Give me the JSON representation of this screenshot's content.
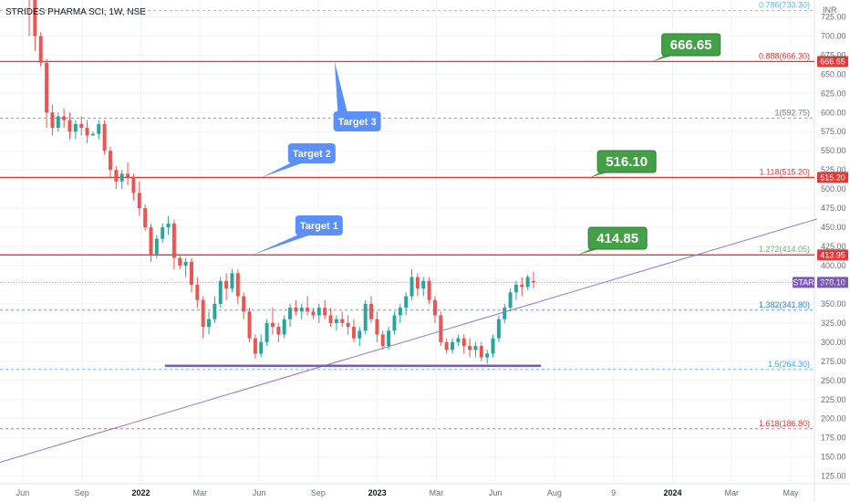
{
  "header": {
    "title": "STRIDES PHARMA SCI, 1W, NSE",
    "currency": "INR"
  },
  "colors": {
    "up": "#26a69a",
    "down": "#ef5350",
    "target_line": "#e53935",
    "trend_line": "#9575cd",
    "support_line": "#7e57c2",
    "callout_blue": "#5b8ff9",
    "callout_green": "#43a047"
  },
  "chart_data": {
    "type": "candlestick",
    "title": "STRIDES PHARMA SCI, 1W, NSE",
    "ylabel": "INR",
    "ylim": [
      115,
      747
    ],
    "y_ticks": [
      "125.00",
      "150.00",
      "175.00",
      "200.00",
      "225.00",
      "250.00",
      "275.00",
      "300.00",
      "325.00",
      "350.00",
      "375.00",
      "400.00",
      "425.00",
      "450.00",
      "475.00",
      "500.00",
      "525.00",
      "550.00",
      "575.00",
      "600.00",
      "625.00",
      "650.00",
      "675.00",
      "700.00",
      "725.00"
    ],
    "x_ticks": [
      {
        "label": "Jun",
        "bold": false
      },
      {
        "label": "Sep",
        "bold": false
      },
      {
        "label": "2022",
        "bold": true
      },
      {
        "label": "Mar",
        "bold": false
      },
      {
        "label": "Jun",
        "bold": false
      },
      {
        "label": "Sep",
        "bold": false
      },
      {
        "label": "2023",
        "bold": true
      },
      {
        "label": "Mar",
        "bold": false
      },
      {
        "label": "Jun",
        "bold": false
      },
      {
        "label": "Aug",
        "bold": false
      },
      {
        "label": "9",
        "bold": false
      },
      {
        "label": "2024",
        "bold": true
      },
      {
        "label": "Mar",
        "bold": false
      },
      {
        "label": "May",
        "bold": false
      }
    ],
    "fib_levels": [
      {
        "label": "0.786(733.30)",
        "value": 733.3,
        "color": "#64b5f6"
      },
      {
        "label": "0.888(666.30)",
        "value": 666.3,
        "color": "#e53935"
      },
      {
        "label": "1(592.75)",
        "value": 592.75,
        "color": "#787b86"
      },
      {
        "label": "1.118(515.20)",
        "value": 515.2,
        "color": "#e53935"
      },
      {
        "label": "1.272(414.05)",
        "value": 414.05,
        "color": "#66bb6a"
      },
      {
        "label": "1.382(341.80)",
        "value": 341.8,
        "color": "#1e88e5"
      },
      {
        "label": "1.5(264.30)",
        "value": 264.3,
        "color": "#42a5f5"
      },
      {
        "label": "1.618(186.80)",
        "value": 186.8,
        "color": "#e53935"
      }
    ],
    "targets": [
      {
        "name": "Target 1",
        "price": "414.85",
        "axis_label": "413.95",
        "value": 413.95
      },
      {
        "name": "Target 2",
        "price": "516.10",
        "axis_label": "515.20",
        "value": 515.2
      },
      {
        "name": "Target 3",
        "price": "666.65",
        "axis_label": "666.65",
        "value": 666.65
      }
    ],
    "current": {
      "symbol": "STAR",
      "price": "378.10",
      "value": 378.1
    },
    "support_level": 269,
    "trend_line": {
      "start": [
        0,
        143
      ],
      "end": [
        1,
        461
      ]
    },
    "candles": [
      [
        765,
        775,
        700,
        760
      ],
      [
        760,
        770,
        680,
        700
      ],
      [
        700,
        705,
        660,
        665
      ],
      [
        665,
        670,
        580,
        600
      ],
      [
        600,
        610,
        570,
        580
      ],
      [
        580,
        600,
        575,
        595
      ],
      [
        595,
        605,
        580,
        590
      ],
      [
        590,
        600,
        565,
        575
      ],
      [
        575,
        590,
        565,
        585
      ],
      [
        585,
        595,
        570,
        580
      ],
      [
        580,
        590,
        560,
        570
      ],
      [
        570,
        575,
        570,
        572
      ],
      [
        572,
        590,
        565,
        585
      ],
      [
        585,
        590,
        545,
        550
      ],
      [
        550,
        555,
        515,
        525
      ],
      [
        525,
        530,
        500,
        510
      ],
      [
        510,
        525,
        500,
        520
      ],
      [
        520,
        535,
        505,
        515
      ],
      [
        515,
        520,
        485,
        495
      ],
      [
        495,
        510,
        465,
        475
      ],
      [
        475,
        480,
        445,
        450
      ],
      [
        450,
        455,
        405,
        415
      ],
      [
        415,
        440,
        410,
        435
      ],
      [
        435,
        455,
        430,
        450
      ],
      [
        450,
        465,
        440,
        455
      ],
      [
        455,
        460,
        395,
        410
      ],
      [
        410,
        415,
        395,
        400
      ],
      [
        400,
        410,
        385,
        405
      ],
      [
        405,
        410,
        365,
        375
      ],
      [
        375,
        385,
        345,
        355
      ],
      [
        355,
        360,
        305,
        320
      ],
      [
        320,
        340,
        310,
        330
      ],
      [
        330,
        360,
        325,
        350
      ],
      [
        350,
        385,
        345,
        380
      ],
      [
        380,
        390,
        355,
        370
      ],
      [
        370,
        395,
        365,
        390
      ],
      [
        390,
        395,
        350,
        360
      ],
      [
        360,
        365,
        330,
        340
      ],
      [
        340,
        345,
        300,
        305
      ],
      [
        305,
        310,
        278,
        285
      ],
      [
        285,
        310,
        280,
        300
      ],
      [
        300,
        330,
        295,
        325
      ],
      [
        325,
        345,
        310,
        320
      ],
      [
        320,
        325,
        300,
        310
      ],
      [
        310,
        335,
        305,
        330
      ],
      [
        330,
        350,
        320,
        345
      ],
      [
        345,
        355,
        335,
        340
      ],
      [
        340,
        350,
        330,
        345
      ],
      [
        345,
        360,
        335,
        340
      ],
      [
        340,
        345,
        330,
        335
      ],
      [
        335,
        350,
        325,
        345
      ],
      [
        345,
        355,
        330,
        335
      ],
      [
        335,
        345,
        320,
        325
      ],
      [
        325,
        335,
        315,
        330
      ],
      [
        330,
        340,
        320,
        325
      ],
      [
        325,
        335,
        310,
        320
      ],
      [
        320,
        330,
        300,
        305
      ],
      [
        305,
        320,
        295,
        315
      ],
      [
        315,
        355,
        310,
        350
      ],
      [
        350,
        360,
        325,
        330
      ],
      [
        330,
        340,
        300,
        310
      ],
      [
        310,
        315,
        290,
        295
      ],
      [
        295,
        320,
        290,
        315
      ],
      [
        315,
        340,
        310,
        335
      ],
      [
        335,
        350,
        325,
        345
      ],
      [
        345,
        365,
        335,
        360
      ],
      [
        360,
        395,
        355,
        385
      ],
      [
        385,
        390,
        360,
        370
      ],
      [
        370,
        385,
        360,
        380
      ],
      [
        380,
        385,
        350,
        355
      ],
      [
        355,
        360,
        325,
        335
      ],
      [
        335,
        340,
        295,
        300
      ],
      [
        300,
        305,
        285,
        290
      ],
      [
        290,
        305,
        285,
        300
      ],
      [
        300,
        310,
        295,
        305
      ],
      [
        305,
        310,
        285,
        295
      ],
      [
        295,
        305,
        280,
        290
      ],
      [
        290,
        300,
        280,
        295
      ],
      [
        295,
        300,
        275,
        280
      ],
      [
        280,
        290,
        272,
        285
      ],
      [
        285,
        310,
        280,
        305
      ],
      [
        305,
        335,
        300,
        330
      ],
      [
        330,
        350,
        325,
        345
      ],
      [
        345,
        370,
        340,
        365
      ],
      [
        365,
        380,
        355,
        375
      ],
      [
        375,
        385,
        360,
        372
      ],
      [
        372,
        388,
        368,
        385
      ],
      [
        380,
        392,
        370,
        378
      ]
    ]
  }
}
